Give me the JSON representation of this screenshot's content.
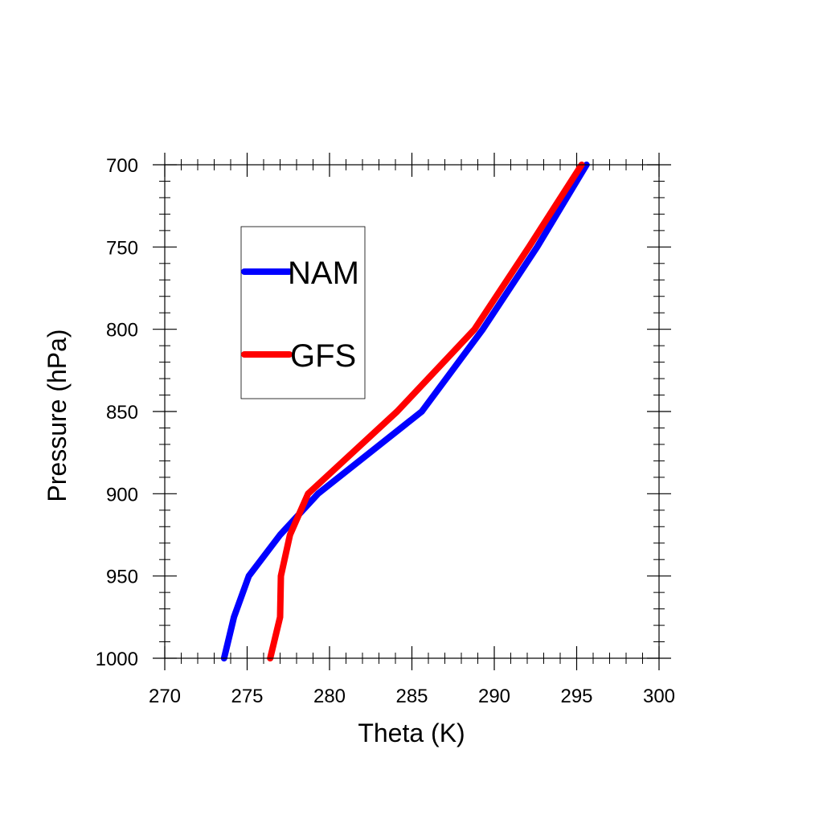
{
  "chart_data": {
    "type": "line",
    "xlabel": "Theta (K)",
    "ylabel": "Pressure (hPa)",
    "xlim": [
      270,
      300
    ],
    "ylim": [
      1000,
      700
    ],
    "y_axis_inverted": true,
    "x_ticks": [
      "270",
      "275",
      "280",
      "285",
      "290",
      "295",
      "300"
    ],
    "y_ticks": [
      "700",
      "750",
      "800",
      "850",
      "900",
      "950",
      "1000"
    ],
    "legend_position": "upper-left",
    "grid": false,
    "series": [
      {
        "name": "NAM",
        "color": "#0000ff",
        "points": [
          {
            "pressure": 1000,
            "theta": 273.6
          },
          {
            "pressure": 975,
            "theta": 274.2
          },
          {
            "pressure": 950,
            "theta": 275.1
          },
          {
            "pressure": 925,
            "theta": 277.0
          },
          {
            "pressure": 900,
            "theta": 279.3
          },
          {
            "pressure": 850,
            "theta": 285.6
          },
          {
            "pressure": 800,
            "theta": 289.3
          },
          {
            "pressure": 750,
            "theta": 292.6
          },
          {
            "pressure": 700,
            "theta": 295.6
          }
        ]
      },
      {
        "name": "GFS",
        "color": "#ff0000",
        "points": [
          {
            "pressure": 1000,
            "theta": 276.4
          },
          {
            "pressure": 975,
            "theta": 277.0
          },
          {
            "pressure": 950,
            "theta": 277.05
          },
          {
            "pressure": 925,
            "theta": 277.6
          },
          {
            "pressure": 900,
            "theta": 278.7
          },
          {
            "pressure": 850,
            "theta": 284.1
          },
          {
            "pressure": 800,
            "theta": 288.8
          },
          {
            "pressure": 750,
            "theta": 292.1
          },
          {
            "pressure": 700,
            "theta": 295.3
          }
        ]
      }
    ]
  }
}
